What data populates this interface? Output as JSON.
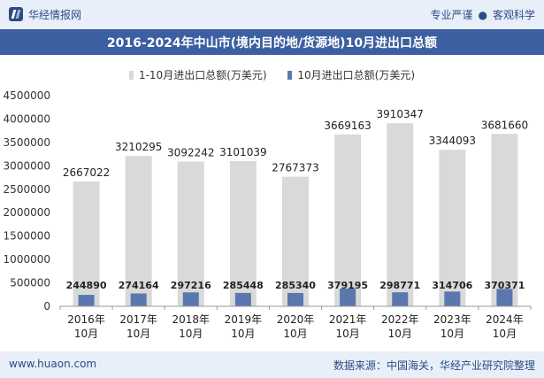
{
  "header": {
    "brand": "华经情报网",
    "tagline_left": "专业严谨",
    "tagline_sep": "●",
    "tagline_right": "客观科学"
  },
  "footer": {
    "website": "www.huaon.com",
    "source": "数据来源：中国海关，华经产业研究院整理"
  },
  "colors": {
    "series1": "#d9d9d9",
    "series2": "#5b78ae",
    "axis": "#999999",
    "title_band": "#3c5fa1"
  },
  "chart_data": {
    "type": "bar",
    "title": "2016-2024年中山市(境内目的地/货源地)10月进出口总额",
    "categories": [
      [
        "2016年",
        "10月"
      ],
      [
        "2017年",
        "10月"
      ],
      [
        "2018年",
        "10月"
      ],
      [
        "2019年",
        "10月"
      ],
      [
        "2020年",
        "10月"
      ],
      [
        "2021年",
        "10月"
      ],
      [
        "2022年",
        "10月"
      ],
      [
        "2023年",
        "10月"
      ],
      [
        "2024年",
        "10月"
      ]
    ],
    "series": [
      {
        "name": "1-10月进出口总额(万美元)",
        "values": [
          2667022,
          3210295,
          3092242,
          3101039,
          2767373,
          3669163,
          3910347,
          3344093,
          3681660
        ]
      },
      {
        "name": "10月进出口总额(万美元)",
        "values": [
          244890,
          274164,
          297216,
          285448,
          285340,
          379195,
          298771,
          314706,
          370371
        ]
      }
    ],
    "ylim": [
      0,
      4500000
    ],
    "yticks": [
      0,
      500000,
      1000000,
      1500000,
      2000000,
      2500000,
      3000000,
      3500000,
      4000000,
      4500000
    ],
    "grid": false,
    "legend": "top-center"
  }
}
